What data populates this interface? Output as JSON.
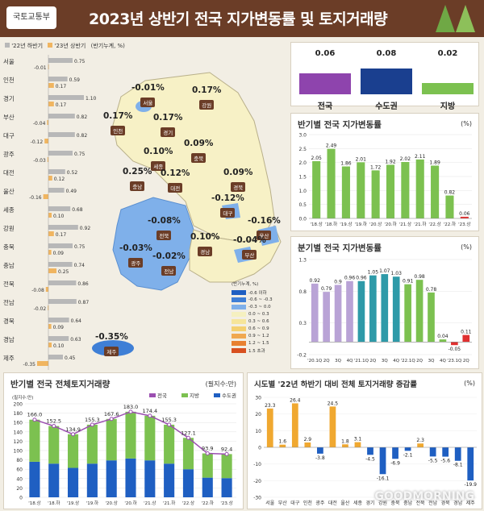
{
  "header": {
    "ministry": "국토교통부",
    "title": "2023년 상반기 전국 지가변동률 및 토지거래량"
  },
  "colors": {
    "prev": "#b8b8b8",
    "curr": "#f0b560",
    "neg": "#4a90d9",
    "purple": "#8e44ad",
    "navy": "#1a3f8f",
    "green": "#7cc150",
    "red": "#e03030"
  },
  "regional": {
    "legend_prev": "'22년 하반기",
    "legend_curr": "'23년 상반기",
    "legend_unit": "(반기누계, %)",
    "rows": [
      {
        "name": "서울",
        "prev": 0.75,
        "curr": -0.01,
        "prev_label": "0.75",
        "curr_label": "-0.01"
      },
      {
        "name": "인천",
        "prev": 0.59,
        "curr": 0.17,
        "prev_label": "0.59",
        "curr_label": "0.17"
      },
      {
        "name": "경기",
        "prev": 1.1,
        "curr": 0.17,
        "prev_label": "1.10",
        "curr_label": "0.17"
      },
      {
        "name": "부산",
        "prev": 0.82,
        "curr": -0.04,
        "prev_label": "0.82",
        "curr_label": "-0.04"
      },
      {
        "name": "대구",
        "prev": 0.82,
        "curr": -0.12,
        "prev_label": "0.82",
        "curr_label": "-0.12"
      },
      {
        "name": "광주",
        "prev": 0.75,
        "curr": -0.03,
        "prev_label": "0.75",
        "curr_label": "-0.03"
      },
      {
        "name": "대전",
        "prev": 0.52,
        "curr": 0.12,
        "prev_label": "0.52",
        "curr_label": "0.12"
      },
      {
        "name": "울산",
        "prev": 0.49,
        "curr": -0.16,
        "prev_label": "0.49",
        "curr_label": "-0.16"
      },
      {
        "name": "세종",
        "prev": 0.68,
        "curr": 0.1,
        "prev_label": "0.68",
        "curr_label": "0.10"
      },
      {
        "name": "강원",
        "prev": 0.92,
        "curr": 0.17,
        "prev_label": "0.92",
        "curr_label": "0.17"
      },
      {
        "name": "충북",
        "prev": 0.75,
        "curr": 0.09,
        "prev_label": "0.75",
        "curr_label": "0.09"
      },
      {
        "name": "충남",
        "prev": 0.74,
        "curr": 0.25,
        "prev_label": "0.74",
        "curr_label": "0.25"
      },
      {
        "name": "전북",
        "prev": 0.86,
        "curr": -0.08,
        "prev_label": "0.86",
        "curr_label": "-0.08"
      },
      {
        "name": "전남",
        "prev": 0.87,
        "curr": -0.02,
        "prev_label": "0.87",
        "curr_label": "-0.02"
      },
      {
        "name": "경북",
        "prev": 0.64,
        "curr": 0.09,
        "prev_label": "0.64",
        "curr_label": "0.09"
      },
      {
        "name": "경남",
        "prev": 0.63,
        "curr": 0.1,
        "prev_label": "0.63",
        "curr_label": "0.10"
      },
      {
        "name": "제주",
        "prev": 0.45,
        "curr": -0.35,
        "prev_label": "0.45",
        "curr_label": "-0.35"
      }
    ]
  },
  "map": {
    "labels": [
      {
        "value": "-0.01%",
        "name": "서울"
      },
      {
        "value": "0.17%",
        "name": "강원"
      },
      {
        "value": "0.17%",
        "name": "인천"
      },
      {
        "value": "0.17%",
        "name": "경기"
      },
      {
        "value": "0.10%",
        "name": "세종"
      },
      {
        "value": "0.09%",
        "name": "충북"
      },
      {
        "value": "0.25%",
        "name": "충남"
      },
      {
        "value": "0.12%",
        "name": "대전"
      },
      {
        "value": "0.09%",
        "name": "경북"
      },
      {
        "value": "-0.12%",
        "name": "대구"
      },
      {
        "value": "-0.08%",
        "name": "전북"
      },
      {
        "value": "-0.16%",
        "name": "울산"
      },
      {
        "value": "0.10%",
        "name": "경남"
      },
      {
        "value": "-0.04%",
        "name": "부산"
      },
      {
        "value": "-0.03%",
        "name": "광주"
      },
      {
        "value": "-0.02%",
        "name": "전남"
      },
      {
        "value": "-0.35%",
        "name": "제주"
      }
    ],
    "legend_title": "(반기누계, %)",
    "legend": [
      {
        "label": "-0.6 이하",
        "color": "#1f5fc2"
      },
      {
        "label": "-0.6 ~ -0.3",
        "color": "#3f7fd6"
      },
      {
        "label": "-0.3 ~ 0.0",
        "color": "#7fb0ea"
      },
      {
        "label": "0.0 ~ 0.3",
        "color": "#f5f0c0"
      },
      {
        "label": "0.3 ~ 0.6",
        "color": "#f6e59a"
      },
      {
        "label": "0.6 ~ 0.9",
        "color": "#f4d070"
      },
      {
        "label": "0.9 ~ 1.2",
        "color": "#f0a850"
      },
      {
        "label": "1.2 ~ 1.5",
        "color": "#e88030"
      },
      {
        "label": "1.5 초과",
        "color": "#d85020"
      }
    ]
  },
  "summary": {
    "items": [
      {
        "value": "0.06",
        "label": "전국",
        "color": "#8e44ad"
      },
      {
        "value": "0.08",
        "label": "수도권",
        "color": "#1a3f8f"
      },
      {
        "value": "0.02",
        "label": "지방",
        "color": "#7cc150"
      }
    ]
  },
  "half_chart": {
    "title": "반기별 전국 지가변동률",
    "unit": "(%)",
    "chart_data": {
      "type": "bar",
      "categories": [
        "'18.상",
        "'18.하",
        "'19.상",
        "'19.하",
        "'20.상",
        "'20.하",
        "'21.상",
        "'21.하",
        "'22.상",
        "'22.하",
        "'23.상"
      ],
      "values": [
        2.05,
        2.49,
        1.86,
        2.01,
        1.72,
        1.92,
        2.02,
        2.11,
        1.89,
        0.82,
        0.06
      ],
      "labels": [
        "2.05",
        "2.49",
        "1.86",
        "2.01",
        "1.72",
        "1.92",
        "2.02",
        "2.11",
        "1.89",
        "0.82",
        "0.06"
      ],
      "ylim": [
        0,
        3.0
      ],
      "yticks": [
        "0.0",
        "0.5",
        "1.0",
        "1.5",
        "2.0",
        "2.5",
        "3.0"
      ]
    }
  },
  "quarter_chart": {
    "title": "분기별 전국 지가변동률",
    "unit": "(%)",
    "chart_data": {
      "type": "bar",
      "categories": [
        "'20.1Q",
        "2Q",
        "3Q",
        "4Q",
        "'21.1Q",
        "2Q",
        "3Q",
        "4Q",
        "'22.1Q",
        "2Q",
        "3Q",
        "4Q",
        "'23.1Q",
        "2Q"
      ],
      "values": [
        0.92,
        0.79,
        0.9,
        0.96,
        0.96,
        1.05,
        1.07,
        1.03,
        0.91,
        0.98,
        0.78,
        0.04,
        -0.05,
        0.11
      ],
      "labels": [
        "0.92",
        "0.79",
        "0.9",
        "0.96",
        "0.96",
        "1.05",
        "1.07",
        "1.03",
        "0.91",
        "0.98",
        "0.78",
        "0.04",
        "-0.05",
        "0.11"
      ],
      "colors": [
        "#b9a3d6",
        "#b9a3d6",
        "#b9a3d6",
        "#b9a3d6",
        "#2e9aa8",
        "#2e9aa8",
        "#2e9aa8",
        "#2e9aa8",
        "#7cc150",
        "#7cc150",
        "#7cc150",
        "#7cc150",
        "#e03030",
        "#e03030"
      ],
      "ylim": [
        -0.2,
        1.3
      ],
      "yticks": [
        "-0.2",
        "0.3",
        "0.8",
        "1.3"
      ]
    }
  },
  "volume_chart": {
    "title": "반기별 전국 전체토지거래량",
    "unit": "(필지수:만)",
    "inner_unit": "(필지수:만)",
    "legend": [
      "전국",
      "지방",
      "수도권"
    ],
    "chart_data": {
      "type": "bar",
      "categories": [
        "'18.상",
        "'18.하",
        "'19.상",
        "'19.하",
        "'20.상",
        "'20.하",
        "'21.상",
        "'21.하",
        "'22.상",
        "'22.하",
        "'23.상"
      ],
      "series": [
        {
          "name": "전국",
          "values": [
            166.0,
            152.5,
            134.9,
            155.3,
            167.6,
            183.0,
            174.4,
            155.3,
            127.1,
            93.9,
            92.4
          ]
        },
        {
          "name": "수도권",
          "values": [
            76,
            72,
            63,
            72,
            79,
            83,
            79,
            72,
            60,
            42,
            41
          ]
        },
        {
          "name": "지방",
          "values": [
            90,
            80.5,
            71.9,
            83.3,
            88.6,
            100,
            95.4,
            83.3,
            67.1,
            51.9,
            51.4
          ]
        }
      ],
      "labels": [
        "166.0",
        "152.5",
        "134.9",
        "155.3",
        "167.6",
        "183.0",
        "174.4",
        "155.3",
        "127.1",
        "93.9",
        "92.4"
      ],
      "ylim": [
        0,
        200
      ],
      "yticks": [
        "0",
        "20",
        "40",
        "60",
        "80",
        "100",
        "120",
        "140",
        "160",
        "180",
        "200"
      ]
    }
  },
  "change_chart": {
    "title": "시도별 '22년 하반기 대비 전체 토지거래량 증감률",
    "unit": "(%)",
    "chart_data": {
      "type": "bar",
      "categories": [
        "서울",
        "부산",
        "대구",
        "인천",
        "광주",
        "대전",
        "울산",
        "세종",
        "경기",
        "강원",
        "충북",
        "충남",
        "전북",
        "전남",
        "경북",
        "경남",
        "제주"
      ],
      "values": [
        23.3,
        1.6,
        26.4,
        2.9,
        -3.8,
        24.5,
        1.8,
        3.1,
        -4.5,
        -16.1,
        -6.9,
        -2.1,
        2.3,
        -5.5,
        -5.6,
        -8.1,
        -19.9
      ],
      "labels": [
        "23.3",
        "1.6",
        "26.4",
        "2.9",
        "-3.8",
        "24.5",
        "1.8",
        "3.1",
        "-4.5",
        "-16.1",
        "-6.9",
        "-2.1",
        "2.3",
        "-5.5",
        "-5.6",
        "-8.1",
        "-19.9"
      ],
      "ylim": [
        -30,
        30
      ],
      "yticks": [
        "30",
        "20",
        "10",
        "0",
        "-10",
        "-20",
        "-30"
      ]
    }
  },
  "watermark": "GOODMORNING"
}
